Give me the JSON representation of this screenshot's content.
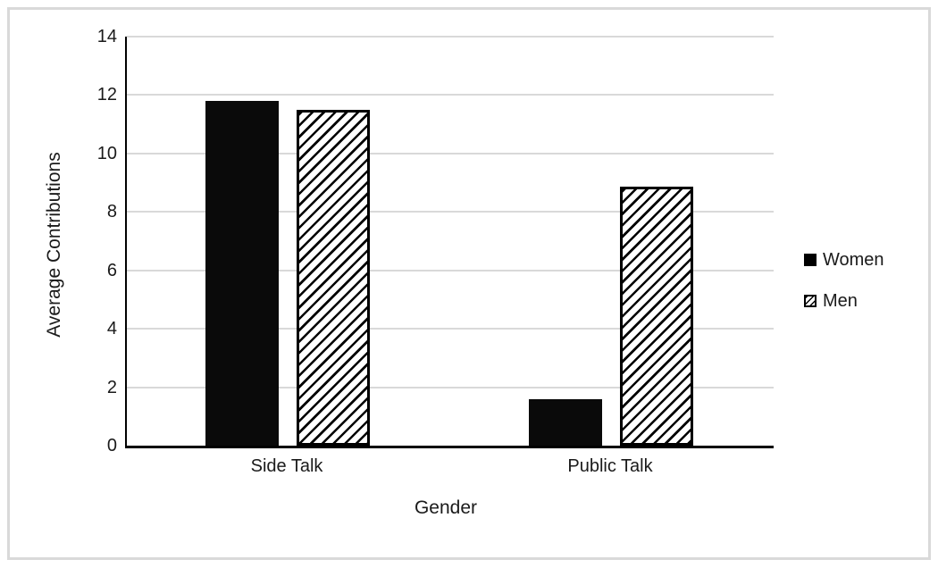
{
  "figure": {
    "background_color": "#ffffff",
    "frame_color": "#d9d9d9"
  },
  "chart_data": {
    "type": "bar",
    "categories": [
      "Side Talk",
      "Public Talk"
    ],
    "series": [
      {
        "name": "Women",
        "pattern": "solid",
        "color": "#000000",
        "values": [
          11.8,
          1.6
        ]
      },
      {
        "name": "Men",
        "pattern": "diagonal-hatch",
        "color": "#000000",
        "fill_background": "#ffffff",
        "values": [
          11.5,
          8.85
        ]
      }
    ],
    "xlabel": "Gender",
    "ylabel": "Average Contributions",
    "ylim": [
      0,
      14
    ],
    "yticks": [
      0,
      2,
      4,
      6,
      8,
      10,
      12,
      14
    ],
    "grid": "horizontal",
    "gridline_color": "#d9d9d9",
    "axis_color": "#000000",
    "legend": {
      "position": "right",
      "entries": [
        "Women",
        "Men"
      ]
    }
  }
}
